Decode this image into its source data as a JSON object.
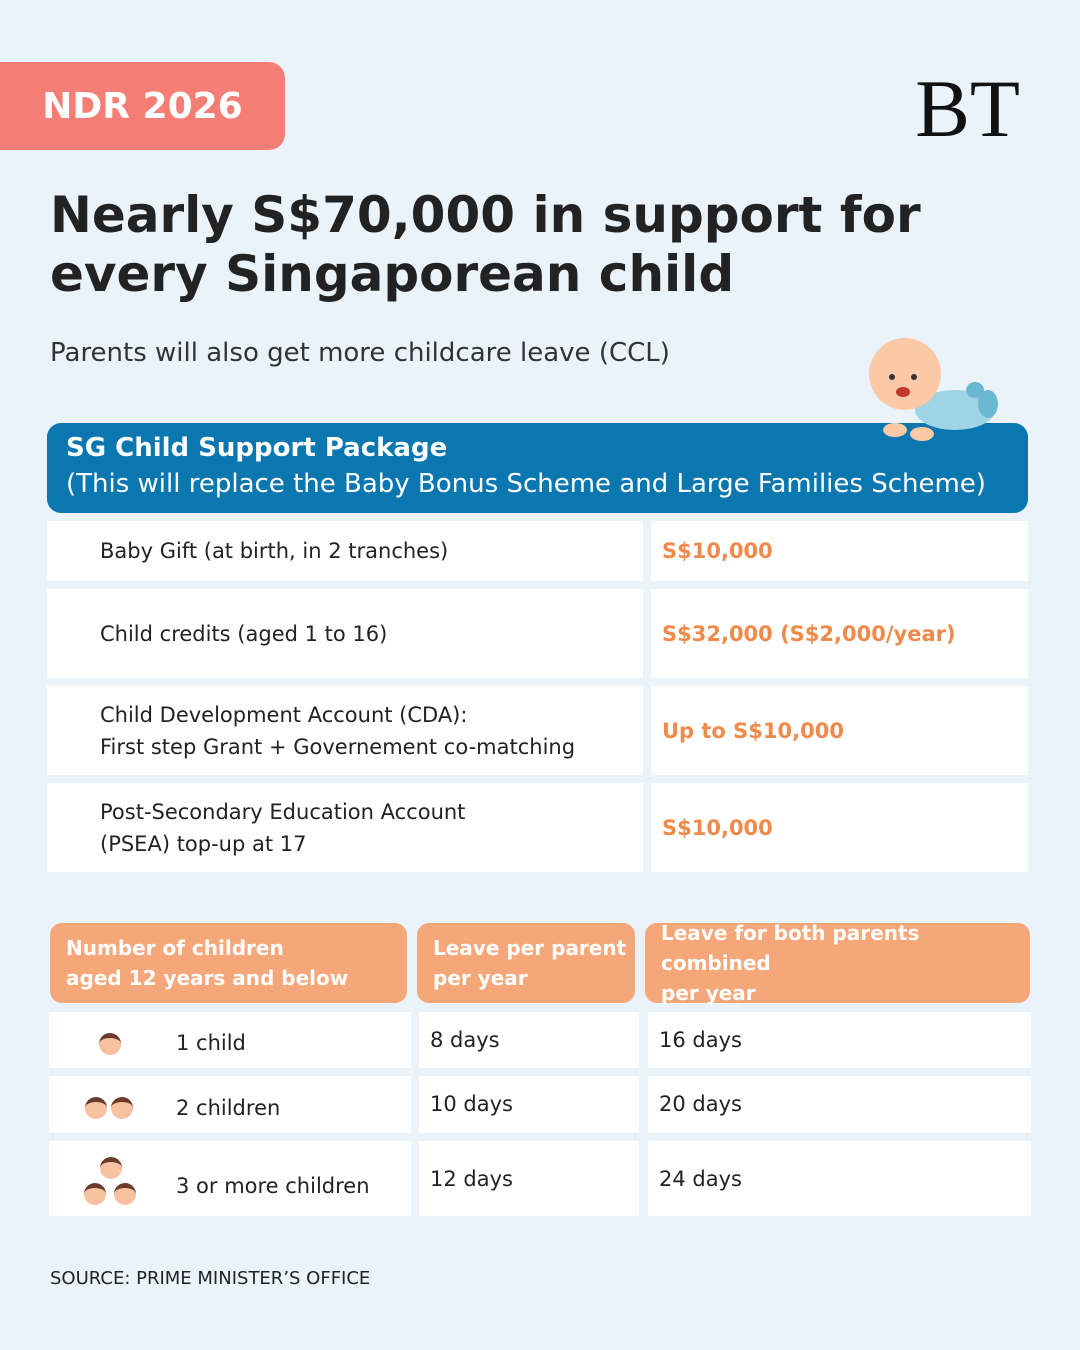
{
  "header": {
    "badge": "NDR 2026",
    "logo": "BT",
    "title": [
      "Nearly S$70,000 in support for",
      "every Singaporean child"
    ],
    "subtitle": "Parents will also get more childcare leave (CCL)"
  },
  "package": {
    "title": "SG Child Support Package",
    "subtitle": "(This will replace the Baby Bonus Scheme and Large Families Scheme)",
    "rows": [
      {
        "label": [
          "Baby Gift (at birth, in 2 tranches)"
        ],
        "value": "S$10,000"
      },
      {
        "label": [
          "Child credits (aged 1 to 16)"
        ],
        "value": "S$32,000 (S$2,000/year)"
      },
      {
        "label": [
          "Child Development Account (CDA):",
          "First step Grant + Governement co-matching"
        ],
        "value": "Up to S$10,000"
      },
      {
        "label": [
          "Post-Secondary Education Account",
          "(PSEA) top-up at 17"
        ],
        "value": "S$10,000"
      }
    ]
  },
  "leave_table": {
    "headers": [
      [
        "Number of children",
        "aged 12 years and below"
      ],
      [
        "Leave per parent",
        "per year"
      ],
      [
        "Leave for both parents combined",
        "per year"
      ]
    ],
    "rows": [
      [
        "1 child",
        "8 days",
        "16 days"
      ],
      [
        "2 children",
        "10 days",
        "20 days"
      ],
      [
        "3 or more children",
        "12 days",
        "24 days"
      ]
    ]
  },
  "source": "SOURCE: PRIME MINISTER’S OFFICE"
}
